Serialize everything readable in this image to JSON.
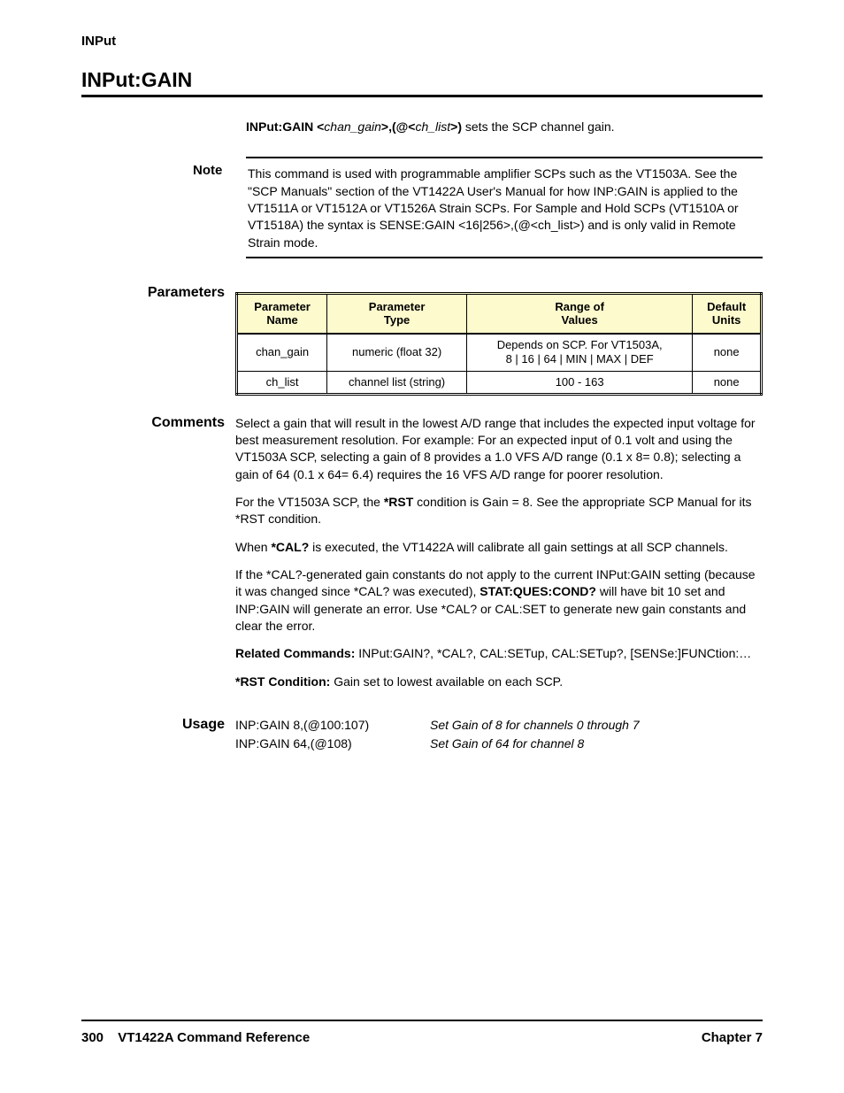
{
  "runningHead": "INPut",
  "title": "INPut:GAIN",
  "syntax": {
    "prefix": "INPut:GAIN <",
    "arg1": "chan_gain",
    "mid": ">,(@<",
    "arg2": "ch_list",
    "suffix": ">)",
    "trailing": " sets the SCP channel gain."
  },
  "note": {
    "label": "Note",
    "text": "This command is used with programmable amplifier SCPs such as the VT1503A. See the \"SCP Manuals\" section of the VT1422A User's Manual for how INP:GAIN is applied to the VT1511A or VT1512A or VT1526A Strain SCPs. For Sample and Hold SCPs (VT1510A or VT1518A) the syntax is SENSE:GAIN <16|256>,(@<ch_list>) and is only valid in Remote Strain mode."
  },
  "paramsLabel": "Parameters",
  "params": {
    "headers": [
      "Parameter\nName",
      "Parameter\nType",
      "Range of\nValues",
      "Default\nUnits"
    ],
    "rows": [
      {
        "name": "chan_gain",
        "type": "numeric (float 32)",
        "range": "Depends on SCP. For VT1503A,\n8 | 16 | 64 | MIN | MAX | DEF",
        "units": "none"
      },
      {
        "name": "ch_list",
        "type": "channel list (string)",
        "range": "100 - 163",
        "units": "none"
      }
    ]
  },
  "commentsLabel": "Comments",
  "comments": [
    {
      "textBefore": "Select a gain that will result in the lowest A/D range that includes the expected input voltage for best measurement resolution. For example: For an expected input of 0.1 volt and using the VT1503A SCP, selecting a gain of 8 provides a 1.0 VFS A/D range (0.1 x 8= 0.8); selecting a gain of 64 (0.1 x 64= 6.4) requires the 16 VFS A/D range for poorer resolution.",
      "bold": null
    },
    {
      "prefix": "For the VT1503A SCP, the ",
      "bold": "*RST",
      "suffix": " condition is Gain = 8. See the appropriate SCP Manual for its *RST condition."
    },
    {
      "prefix": "When ",
      "bold": "*CAL?",
      "suffix": " is executed, the VT1422A will calibrate all gain settings at all SCP channels."
    },
    {
      "prefix": "If the *CAL?-generated gain constants do not apply to the current INPut:GAIN setting (because it was changed since *CAL? was executed), ",
      "bold": "STAT:QUES:COND?",
      "suffix": " will have bit 10 set and INP:GAIN will generate an error. Use *CAL? or CAL:SET to generate new gain constants and clear the error."
    },
    {
      "prefix": "",
      "bold": "Related Commands:",
      "suffix": " INPut:GAIN?, *CAL?, CAL:SETup, CAL:SETup?, [SENSe:]FUNCtion:…"
    },
    {
      "prefix": "",
      "bold": "*RST Condition:",
      "suffix": " Gain set to lowest available on each SCP."
    }
  ],
  "usageLabel": "Usage",
  "usage": [
    {
      "cmd": "INP:GAIN 8,(@100:107)",
      "desc": "Set Gain of 8 for channels 0 through 7"
    },
    {
      "cmd": "INP:GAIN 64,(@108)",
      "desc": "Set Gain of 64 for channel 8"
    }
  ],
  "footer": {
    "pagenum": "300",
    "bookTitle": "VT1422A Command Reference",
    "chapter": "Chapter 7"
  },
  "colors": {
    "headerBg": "#fdfacd",
    "text": "#000000",
    "bg": "#ffffff"
  }
}
